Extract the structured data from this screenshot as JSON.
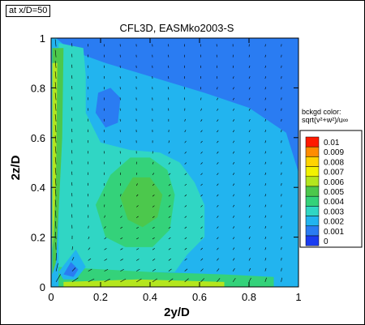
{
  "station_label": "at x/D=50",
  "chart_data": {
    "type": "heatmap",
    "title": "CFL3D, EASMko2003-S",
    "xlabel": "2y/D",
    "ylabel": "2z/D",
    "xlim": [
      0,
      1
    ],
    "ylim": [
      0,
      1
    ],
    "x_ticks": [
      "0",
      "0.2",
      "0.4",
      "0.6",
      "0.8",
      "1"
    ],
    "y_ticks": [
      "0",
      "0.2",
      "0.4",
      "0.6",
      "0.8",
      "1"
    ],
    "legend": {
      "title_line1": "bckgd color:",
      "title_line2": "sqrt(v²+w²)/u∞",
      "levels": [
        "0.01",
        "0.009",
        "0.008",
        "0.007",
        "0.006",
        "0.005",
        "0.004",
        "0.003",
        "0.002",
        "0.001",
        "0"
      ],
      "colors": [
        "#ff1a00",
        "#ff8c00",
        "#ffd400",
        "#f2f200",
        "#b4e61e",
        "#4cc84c",
        "#34d27a",
        "#30d6c4",
        "#22b4ef",
        "#2a7cf2",
        "#1a3cf0"
      ]
    },
    "contour_regions": [
      {
        "level": 0.001,
        "points": [
          [
            0.02,
            1.0
          ],
          [
            0.55,
            1.0
          ],
          [
            1.0,
            1.0
          ],
          [
            1.0,
            0.46
          ],
          [
            0.95,
            0.62
          ],
          [
            0.8,
            0.72
          ],
          [
            0.62,
            0.78
          ],
          [
            0.42,
            0.84
          ],
          [
            0.22,
            0.9
          ],
          [
            0.08,
            0.95
          ]
        ]
      },
      {
        "level": 0.001,
        "points": [
          [
            0.19,
            0.78
          ],
          [
            0.24,
            0.8
          ],
          [
            0.28,
            0.76
          ],
          [
            0.27,
            0.66
          ],
          [
            0.22,
            0.64
          ],
          [
            0.18,
            0.7
          ]
        ]
      },
      {
        "level": 0.001,
        "points": [
          [
            0.62,
            0.26
          ],
          [
            0.68,
            0.29
          ],
          [
            0.76,
            0.28
          ],
          [
            0.8,
            0.24
          ],
          [
            0.72,
            0.21
          ],
          [
            0.64,
            0.22
          ]
        ]
      },
      {
        "level": 0.002,
        "points": [
          [
            0.6,
            0.37
          ],
          [
            0.7,
            0.35
          ],
          [
            0.82,
            0.33
          ],
          [
            0.85,
            0.26
          ],
          [
            0.78,
            0.19
          ],
          [
            0.66,
            0.17
          ],
          [
            0.56,
            0.2
          ],
          [
            0.54,
            0.3
          ]
        ]
      },
      {
        "level": 0.003,
        "points": [
          [
            0.03,
            0.98
          ],
          [
            0.13,
            0.96
          ],
          [
            0.14,
            0.85
          ],
          [
            0.14,
            0.7
          ],
          [
            0.2,
            0.58
          ],
          [
            0.32,
            0.55
          ],
          [
            0.44,
            0.54
          ],
          [
            0.52,
            0.5
          ],
          [
            0.58,
            0.42
          ],
          [
            0.62,
            0.33
          ],
          [
            0.62,
            0.2
          ],
          [
            0.55,
            0.13
          ],
          [
            0.5,
            0.06
          ],
          [
            0.03,
            0.06
          ]
        ]
      },
      {
        "level": 0.004,
        "points": [
          [
            0.18,
            0.33
          ],
          [
            0.24,
            0.45
          ],
          [
            0.32,
            0.52
          ],
          [
            0.4,
            0.52
          ],
          [
            0.47,
            0.47
          ],
          [
            0.5,
            0.37
          ],
          [
            0.48,
            0.23
          ],
          [
            0.41,
            0.16
          ],
          [
            0.3,
            0.16
          ],
          [
            0.22,
            0.2
          ]
        ]
      },
      {
        "level": 0.005,
        "points": [
          [
            0.28,
            0.36
          ],
          [
            0.33,
            0.44
          ],
          [
            0.4,
            0.44
          ],
          [
            0.45,
            0.37
          ],
          [
            0.43,
            0.28
          ],
          [
            0.37,
            0.24
          ],
          [
            0.31,
            0.27
          ]
        ]
      },
      {
        "level": 0.005,
        "points": [
          [
            0.005,
            0.96
          ],
          [
            0.05,
            0.96
          ],
          [
            0.045,
            0.6
          ],
          [
            0.03,
            0.3
          ],
          [
            0.02,
            0.1
          ],
          [
            0.005,
            0.05
          ]
        ]
      },
      {
        "level": 0.004,
        "points": [
          [
            0.03,
            0.08
          ],
          [
            0.4,
            0.06
          ],
          [
            0.7,
            0.05
          ],
          [
            0.9,
            0.04
          ],
          [
            0.9,
            0.0
          ],
          [
            0.03,
            0.0
          ]
        ]
      },
      {
        "level": 0.006,
        "points": [
          [
            0.005,
            0.9
          ],
          [
            0.025,
            0.9
          ],
          [
            0.02,
            0.45
          ],
          [
            0.01,
            0.2
          ],
          [
            0.005,
            0.15
          ]
        ]
      },
      {
        "level": 0.006,
        "points": [
          [
            0.05,
            0.02
          ],
          [
            0.35,
            0.03
          ],
          [
            0.7,
            0.02
          ],
          [
            0.7,
            0.0
          ],
          [
            0.05,
            0.0
          ]
        ]
      },
      {
        "level": 0.002,
        "points": [
          [
            0.03,
            0.06
          ],
          [
            0.1,
            0.15
          ],
          [
            0.14,
            0.08
          ],
          [
            0.1,
            0.03
          ],
          [
            0.05,
            0.03
          ]
        ]
      },
      {
        "level": 0.001,
        "points": [
          [
            0.05,
            0.05
          ],
          [
            0.08,
            0.1
          ],
          [
            0.11,
            0.07
          ],
          [
            0.09,
            0.04
          ]
        ]
      }
    ],
    "vector_field": {
      "description": "secondary-flow velocity vectors (v,w) drawn as arrows"
    }
  }
}
